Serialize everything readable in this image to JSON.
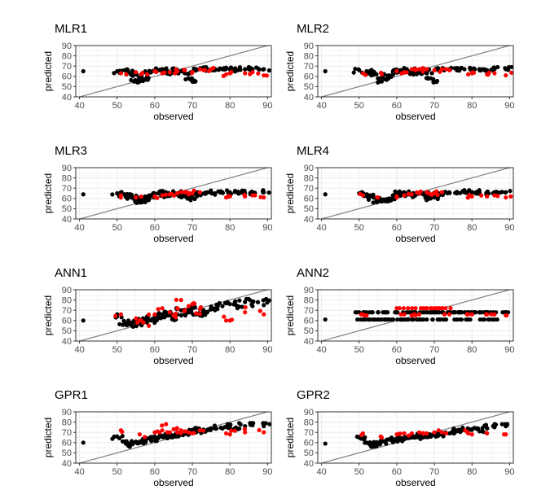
{
  "figure": {
    "type": "scatter",
    "colors": {
      "train": "#000000",
      "test": "#ff0000",
      "identity": "#808080",
      "grid": "#ebebeb",
      "border": "#333333"
    }
  },
  "chart_data": [
    {
      "type": "scatter",
      "title": "MLR1",
      "xlabel": "observed",
      "ylabel": "predicted",
      "xlim": [
        39,
        91
      ],
      "ylim": [
        40,
        90
      ],
      "xticks": [
        40,
        50,
        60,
        70,
        80,
        90
      ],
      "yticks": [
        40,
        50,
        60,
        70,
        80,
        90
      ],
      "identity_line": true,
      "spread": 0.12,
      "y_min": 54,
      "y_max": 69,
      "series": [
        {
          "name": "train",
          "color": "#000000",
          "x": [
            41,
            50,
            52,
            53,
            54,
            55,
            56,
            57,
            58,
            59,
            60,
            61,
            62,
            63,
            64,
            65,
            66,
            67,
            68,
            69,
            70,
            71,
            72,
            74,
            76,
            78,
            80,
            82,
            84,
            86,
            89
          ],
          "y": [
            65,
            65,
            66,
            64,
            62,
            56,
            55,
            57,
            60,
            64,
            65,
            66,
            67,
            65,
            63,
            64,
            66,
            65,
            63,
            58,
            55,
            66,
            67,
            67,
            66,
            67,
            67,
            66,
            67,
            67,
            67
          ]
        },
        {
          "name": "test",
          "color": "#ff0000",
          "x": [
            51,
            55,
            58,
            60,
            62,
            64,
            66,
            68,
            70,
            72,
            73,
            75,
            79,
            80,
            84,
            86,
            89
          ],
          "y": [
            63,
            64,
            62,
            65,
            63,
            64,
            65,
            66,
            64,
            67,
            66,
            67,
            62,
            63,
            63,
            64,
            61
          ]
        }
      ]
    },
    {
      "type": "scatter",
      "title": "MLR2",
      "xlabel": "observed",
      "ylabel": "predicted",
      "xlim": [
        39,
        91
      ],
      "ylim": [
        40,
        90
      ],
      "xticks": [
        40,
        50,
        60,
        70,
        80,
        90
      ],
      "yticks": [
        40,
        50,
        60,
        70,
        80,
        90
      ],
      "identity_line": true,
      "spread": 0.12,
      "y_min": 54,
      "y_max": 69,
      "series": [
        {
          "name": "train",
          "color": "#000000",
          "x": [
            41,
            50,
            52,
            53,
            54,
            55,
            56,
            57,
            58,
            59,
            60,
            61,
            62,
            63,
            64,
            65,
            66,
            67,
            68,
            69,
            70,
            71,
            72,
            74,
            76,
            78,
            80,
            82,
            84,
            86,
            89
          ],
          "y": [
            65,
            66,
            65,
            63,
            62,
            58,
            55,
            57,
            61,
            64,
            65,
            66,
            67,
            65,
            63,
            64,
            66,
            65,
            63,
            58,
            55,
            66,
            67,
            67,
            66,
            67,
            66,
            67,
            66,
            67,
            67
          ]
        },
        {
          "name": "test",
          "color": "#ff0000",
          "x": [
            51,
            56,
            60,
            62,
            64,
            65,
            66,
            67,
            68,
            70,
            72,
            74,
            79,
            80,
            84,
            86,
            89
          ],
          "y": [
            63,
            62,
            65,
            64,
            67,
            66,
            67,
            66,
            67,
            66,
            67,
            66,
            62,
            63,
            62,
            63,
            61
          ]
        }
      ]
    },
    {
      "type": "scatter",
      "title": "MLR3",
      "xlabel": "observed",
      "ylabel": "predicted",
      "xlim": [
        39,
        91
      ],
      "ylim": [
        40,
        90
      ],
      "xticks": [
        40,
        50,
        60,
        70,
        80,
        90
      ],
      "yticks": [
        40,
        50,
        60,
        70,
        80,
        90
      ],
      "identity_line": true,
      "spread": 0.12,
      "y_min": 55,
      "y_max": 68,
      "series": [
        {
          "name": "train",
          "color": "#000000",
          "x": [
            41,
            50,
            52,
            53,
            54,
            55,
            56,
            57,
            58,
            59,
            60,
            61,
            62,
            63,
            64,
            65,
            66,
            67,
            68,
            69,
            70,
            71,
            72,
            74,
            76,
            78,
            80,
            82,
            84,
            86,
            89
          ],
          "y": [
            64,
            65,
            64,
            62,
            61,
            58,
            56,
            58,
            60,
            63,
            64,
            65,
            66,
            64,
            63,
            64,
            65,
            64,
            62,
            60,
            61,
            65,
            66,
            66,
            65,
            66,
            66,
            66,
            65,
            66,
            66
          ]
        },
        {
          "name": "test",
          "color": "#ff0000",
          "x": [
            51,
            55,
            60,
            62,
            64,
            66,
            68,
            69,
            70,
            72,
            79,
            80,
            84,
            86,
            89
          ],
          "y": [
            63,
            61,
            62,
            63,
            64,
            65,
            66,
            64,
            65,
            66,
            61,
            62,
            62,
            63,
            61
          ]
        }
      ]
    },
    {
      "type": "scatter",
      "title": "MLR4",
      "xlabel": "observed",
      "ylabel": "predicted",
      "xlim": [
        39,
        91
      ],
      "ylim": [
        40,
        90
      ],
      "xticks": [
        40,
        50,
        60,
        70,
        80,
        90
      ],
      "yticks": [
        40,
        50,
        60,
        70,
        80,
        90
      ],
      "identity_line": true,
      "spread": 0.12,
      "y_min": 56,
      "y_max": 68,
      "series": [
        {
          "name": "train",
          "color": "#000000",
          "x": [
            41,
            50,
            52,
            53,
            54,
            55,
            56,
            57,
            58,
            59,
            60,
            61,
            62,
            63,
            64,
            65,
            66,
            67,
            68,
            69,
            70,
            71,
            72,
            74,
            76,
            78,
            80,
            82,
            84,
            86,
            89
          ],
          "y": [
            64,
            65,
            64,
            62,
            61,
            58,
            57,
            58,
            60,
            63,
            64,
            65,
            66,
            64,
            63,
            64,
            65,
            64,
            62,
            60,
            61,
            65,
            66,
            66,
            65,
            66,
            66,
            66,
            65,
            66,
            66
          ]
        },
        {
          "name": "test",
          "color": "#ff0000",
          "x": [
            51,
            55,
            60,
            62,
            64,
            66,
            68,
            69,
            70,
            72,
            79,
            80,
            84,
            86,
            89
          ],
          "y": [
            63,
            61,
            62,
            63,
            64,
            65,
            66,
            64,
            65,
            66,
            61,
            62,
            62,
            63,
            61
          ]
        }
      ]
    },
    {
      "type": "scatter",
      "title": "ANN1",
      "xlabel": "observed",
      "ylabel": "predicted",
      "xlim": [
        39,
        91
      ],
      "ylim": [
        40,
        90
      ],
      "xticks": [
        40,
        50,
        60,
        70,
        80,
        90
      ],
      "yticks": [
        40,
        50,
        60,
        70,
        80,
        90
      ],
      "identity_line": true,
      "spread": 0.7,
      "y_min": 51,
      "y_max": 81,
      "series": [
        {
          "name": "train",
          "color": "#000000",
          "x": [
            41,
            50,
            52,
            53,
            54,
            55,
            56,
            57,
            58,
            59,
            60,
            61,
            62,
            63,
            64,
            65,
            66,
            67,
            68,
            69,
            70,
            71,
            72,
            74,
            76,
            78,
            80,
            82,
            84,
            86,
            89
          ],
          "y": [
            60,
            66,
            58,
            60,
            58,
            57,
            60,
            62,
            64,
            60,
            65,
            63,
            66,
            68,
            65,
            62,
            66,
            70,
            66,
            68,
            72,
            66,
            65,
            68,
            70,
            74,
            76,
            72,
            78,
            74,
            75
          ]
        },
        {
          "name": "test",
          "color": "#ff0000",
          "x": [
            51,
            55,
            56,
            57,
            60,
            62,
            64,
            65,
            66,
            67,
            68,
            69,
            70,
            71,
            72,
            79,
            80,
            84,
            89
          ],
          "y": [
            66,
            62,
            60,
            58,
            66,
            72,
            68,
            65,
            72,
            80,
            70,
            74,
            76,
            67,
            71,
            60,
            60,
            68,
            66
          ]
        }
      ]
    },
    {
      "type": "scatter",
      "title": "ANN2",
      "xlabel": "observed",
      "ylabel": "predicted",
      "xlim": [
        39,
        91
      ],
      "ylim": [
        40,
        90
      ],
      "xticks": [
        40,
        50,
        60,
        70,
        80,
        90
      ],
      "yticks": [
        40,
        50,
        60,
        70,
        80,
        90
      ],
      "identity_line": true,
      "spread": 0.0,
      "y_min": 60,
      "y_max": 73,
      "series": [
        {
          "name": "train",
          "color": "#000000",
          "x": [
            41,
            50,
            51,
            52,
            53,
            54,
            55,
            56,
            57,
            58,
            59,
            60,
            61,
            62,
            63,
            64,
            65,
            66,
            67,
            68,
            69,
            70,
            71,
            72,
            73,
            74,
            75,
            76,
            77,
            78,
            79,
            80,
            81,
            82,
            83,
            84,
            85,
            86,
            89
          ],
          "y": [
            61,
            68,
            61,
            68,
            61,
            61,
            68,
            61,
            68,
            61,
            61,
            68,
            61,
            61,
            68,
            61,
            68,
            61,
            68,
            61,
            68,
            68,
            61,
            68,
            61,
            68,
            68,
            61,
            68,
            68,
            61,
            68,
            68,
            68,
            61,
            68,
            68,
            61,
            68
          ]
        },
        {
          "name": "test",
          "color": "#ff0000",
          "x": [
            51,
            52,
            60,
            62,
            63,
            64,
            65,
            66,
            67,
            68,
            69,
            70,
            71,
            72,
            73,
            74,
            79,
            80,
            84,
            86,
            89
          ],
          "y": [
            66,
            65,
            72,
            66,
            72,
            65,
            72,
            66,
            72,
            72,
            72,
            72,
            72,
            72,
            72,
            66,
            66,
            66,
            66,
            66,
            65
          ]
        }
      ]
    },
    {
      "type": "scatter",
      "title": "GPR1",
      "xlabel": "observed",
      "ylabel": "predicted",
      "xlim": [
        39,
        91
      ],
      "ylim": [
        40,
        90
      ],
      "xticks": [
        40,
        50,
        60,
        70,
        80,
        90
      ],
      "yticks": [
        40,
        50,
        60,
        70,
        80,
        90
      ],
      "identity_line": true,
      "spread": 0.45,
      "y_min": 56,
      "y_max": 79,
      "series": [
        {
          "name": "train",
          "color": "#000000",
          "x": [
            41,
            50,
            52,
            53,
            54,
            55,
            56,
            57,
            58,
            59,
            60,
            61,
            62,
            63,
            64,
            65,
            66,
            67,
            68,
            69,
            70,
            71,
            72,
            74,
            76,
            78,
            80,
            82,
            84,
            86,
            89
          ],
          "y": [
            60,
            66,
            61,
            58,
            60,
            61,
            60,
            62,
            64,
            63,
            66,
            65,
            66,
            68,
            67,
            67,
            68,
            69,
            70,
            69,
            72,
            70,
            71,
            72,
            74,
            74,
            75,
            73,
            76,
            77,
            76
          ]
        },
        {
          "name": "test",
          "color": "#ff0000",
          "x": [
            51,
            56,
            60,
            62,
            63,
            64,
            65,
            66,
            67,
            68,
            69,
            70,
            72,
            79,
            80,
            84,
            89
          ],
          "y": [
            72,
            68,
            70,
            72,
            78,
            70,
            73,
            70,
            72,
            71,
            70,
            69,
            72,
            69,
            68,
            70,
            70
          ]
        }
      ]
    },
    {
      "type": "scatter",
      "title": "GPR2",
      "xlabel": "observed",
      "ylabel": "predicted",
      "xlim": [
        39,
        91
      ],
      "ylim": [
        40,
        90
      ],
      "xticks": [
        40,
        50,
        60,
        70,
        80,
        90
      ],
      "yticks": [
        40,
        50,
        60,
        70,
        80,
        90
      ],
      "identity_line": true,
      "spread": 0.3,
      "y_min": 56,
      "y_max": 78,
      "series": [
        {
          "name": "train",
          "color": "#000000",
          "x": [
            41,
            50,
            52,
            53,
            54,
            55,
            56,
            57,
            58,
            59,
            60,
            61,
            62,
            63,
            64,
            65,
            66,
            67,
            68,
            69,
            70,
            71,
            72,
            74,
            76,
            78,
            80,
            82,
            84,
            86,
            89
          ],
          "y": [
            59,
            65,
            60,
            58,
            59,
            60,
            61,
            61,
            63,
            62,
            64,
            63,
            65,
            66,
            65,
            65,
            66,
            67,
            67,
            66,
            68,
            67,
            69,
            69,
            71,
            72,
            73,
            71,
            74,
            75,
            76
          ]
        },
        {
          "name": "test",
          "color": "#ff0000",
          "x": [
            51,
            56,
            60,
            62,
            64,
            66,
            68,
            70,
            72,
            79,
            80,
            84,
            89
          ],
          "y": [
            69,
            65,
            68,
            69,
            69,
            70,
            69,
            70,
            70,
            69,
            68,
            69,
            68
          ]
        }
      ]
    }
  ]
}
